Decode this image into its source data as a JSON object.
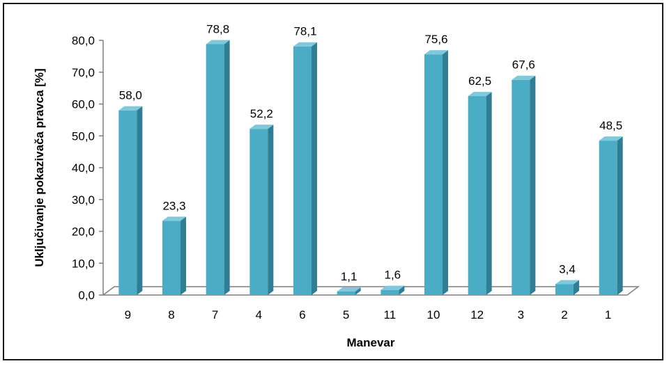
{
  "chart_data": {
    "type": "bar",
    "title": "",
    "xlabel": "Manevar",
    "ylabel": "Uključivanje pokazivača pravca [%]",
    "categories": [
      "9",
      "8",
      "7",
      "4",
      "6",
      "5",
      "11",
      "10",
      "12",
      "3",
      "2",
      "1"
    ],
    "values": [
      58.0,
      23.3,
      78.8,
      52.2,
      78.1,
      1.1,
      1.6,
      75.6,
      62.5,
      67.6,
      3.4,
      48.5
    ],
    "value_labels": [
      "58,0",
      "23,3",
      "78,8",
      "52,2",
      "78,1",
      "1,1",
      "1,6",
      "75,6",
      "62,5",
      "67,6",
      "3,4",
      "48,5"
    ],
    "ylim": [
      0,
      80
    ],
    "yticks": [
      "0,0",
      "10,0",
      "20,0",
      "30,0",
      "40,0",
      "50,0",
      "60,0",
      "70,0",
      "80,0"
    ],
    "grid": false,
    "legend": "none",
    "bar_style": "3d",
    "colors": {
      "bar_front": "#4BACC6",
      "bar_side": "#2F7E93",
      "bar_top": "#7FC9DB",
      "floor": "#ffffff",
      "axis": "#7f7f7f"
    }
  }
}
